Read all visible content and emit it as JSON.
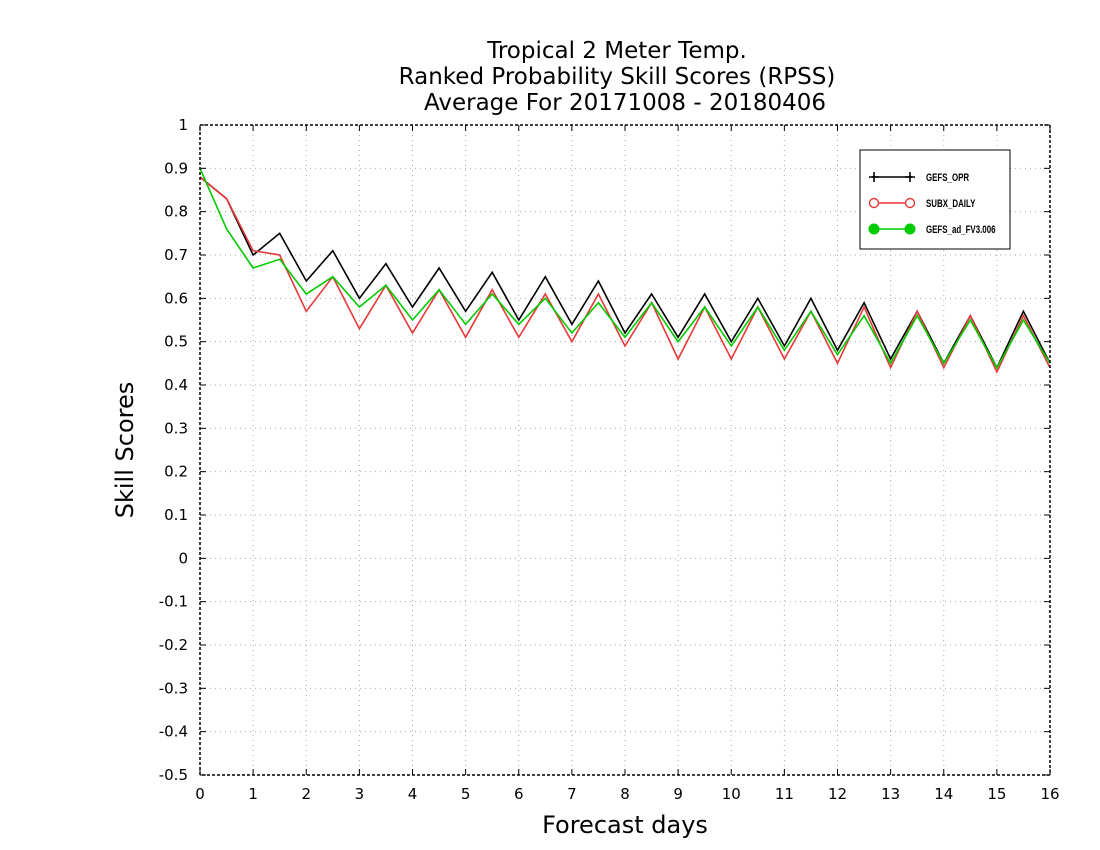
{
  "chart_data": {
    "type": "line",
    "title": [
      "Tropical 2 Meter Temp.",
      "Ranked Probability Skill Scores (RPSS)",
      "Average For 20171008 - 20180406"
    ],
    "xlabel": "Forecast days",
    "ylabel": "Skill Scores",
    "xlim": [
      0,
      16
    ],
    "ylim": [
      -0.5,
      1
    ],
    "xticks": [
      "0",
      "1",
      "2",
      "3",
      "4",
      "5",
      "6",
      "7",
      "8",
      "9",
      "10",
      "11",
      "12",
      "13",
      "14",
      "15",
      "16"
    ],
    "yticks": [
      "1",
      "0.9",
      "0.8",
      "0.7",
      "0.6",
      "0.5",
      "0.4",
      "0.3",
      "0.2",
      "0.1",
      "0",
      "-0.1",
      "-0.2",
      "-0.3",
      "-0.4",
      "-0.5"
    ],
    "grid": true,
    "legend_position": "top-right",
    "x": [
      0,
      0.5,
      1,
      1.5,
      2,
      2.5,
      3,
      3.5,
      4,
      4.5,
      5,
      5.5,
      6,
      6.5,
      7,
      7.5,
      8,
      8.5,
      9,
      9.5,
      10,
      10.5,
      11,
      11.5,
      12,
      12.5,
      13,
      13.5,
      14,
      14.5,
      15,
      15.5,
      16
    ],
    "series": [
      {
        "name": "GEFS_OPR",
        "color": "#000000",
        "marker": "plus",
        "values": [
          0.88,
          0.83,
          0.7,
          0.75,
          0.64,
          0.71,
          0.6,
          0.68,
          0.58,
          0.67,
          0.57,
          0.66,
          0.55,
          0.65,
          0.54,
          0.64,
          0.52,
          0.61,
          0.51,
          0.61,
          0.5,
          0.6,
          0.49,
          0.6,
          0.48,
          0.59,
          0.46,
          0.57,
          0.45,
          0.56,
          0.44,
          0.57,
          0.45
        ]
      },
      {
        "name": "SUBX_DAILY",
        "color": "#e83a3a",
        "marker": "open-circle",
        "values": [
          0.88,
          0.83,
          0.71,
          0.7,
          0.57,
          0.65,
          0.53,
          0.63,
          0.52,
          0.62,
          0.51,
          0.62,
          0.51,
          0.61,
          0.5,
          0.61,
          0.49,
          0.59,
          0.46,
          0.58,
          0.46,
          0.58,
          0.46,
          0.57,
          0.45,
          0.58,
          0.44,
          0.57,
          0.44,
          0.56,
          0.43,
          0.56,
          0.44
        ]
      },
      {
        "name": "GEFS_ad_FV3.006",
        "color": "#00cc00",
        "marker": "filled-circle",
        "values": [
          0.9,
          0.76,
          0.67,
          0.69,
          0.61,
          0.65,
          0.58,
          0.63,
          0.55,
          0.62,
          0.54,
          0.61,
          0.54,
          0.6,
          0.52,
          0.59,
          0.51,
          0.59,
          0.5,
          0.58,
          0.49,
          0.58,
          0.48,
          0.57,
          0.47,
          0.56,
          0.45,
          0.56,
          0.45,
          0.55,
          0.44,
          0.55,
          0.45
        ]
      }
    ]
  }
}
